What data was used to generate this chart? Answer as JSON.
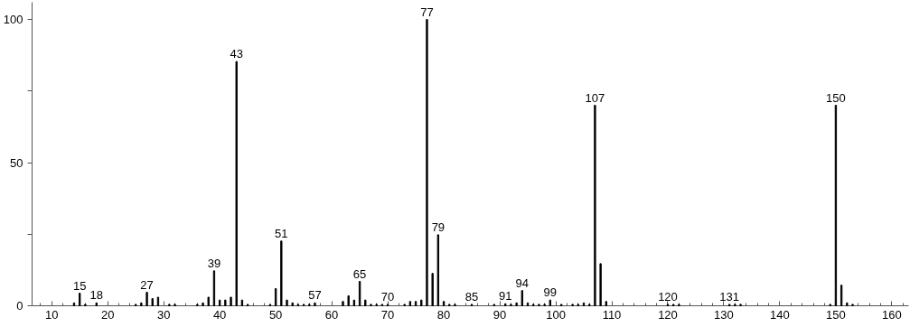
{
  "chart_data": {
    "type": "bar",
    "color": "#000000",
    "x": [
      14,
      15,
      16,
      18,
      25,
      26,
      27,
      28,
      29,
      31,
      32,
      36,
      37,
      38,
      39,
      40,
      41,
      42,
      43,
      44,
      45,
      49,
      50,
      51,
      52,
      53,
      54,
      55,
      56,
      57,
      62,
      63,
      64,
      65,
      66,
      67,
      68,
      69,
      70,
      73,
      74,
      75,
      76,
      77,
      78,
      79,
      80,
      81,
      82,
      85,
      89,
      91,
      92,
      93,
      94,
      95,
      96,
      97,
      98,
      99,
      101,
      103,
      104,
      105,
      106,
      107,
      108,
      109,
      120,
      121,
      122,
      131,
      132,
      133,
      149,
      150,
      151,
      152,
      153
    ],
    "values": [
      1,
      4.4,
      0.5,
      1,
      0.5,
      1,
      4.7,
      2.5,
      3,
      0.5,
      0.5,
      0.5,
      1,
      3,
      12.2,
      2,
      2,
      3,
      85.3,
      2,
      0.5,
      0.5,
      6,
      22.6,
      2,
      1,
      0.5,
      0.5,
      0.5,
      1,
      1.5,
      3.5,
      2,
      8.5,
      2,
      0.5,
      0.5,
      0.5,
      0.5,
      0.5,
      1.5,
      1.5,
      2,
      100,
      11.3,
      24.8,
      1.5,
      0.5,
      0.5,
      0.5,
      0.5,
      0.7,
      0.5,
      1,
      5.3,
      1,
      0.5,
      0.5,
      0.5,
      2,
      0.5,
      0.5,
      0.5,
      1,
      0.5,
      70,
      14.7,
      1.5,
      0.5,
      0.5,
      0.5,
      0.5,
      0.5,
      0.5,
      0.5,
      70,
      7.2,
      1,
      0.5
    ],
    "xlim": [
      6.5,
      163
    ],
    "ylim": [
      0,
      106
    ],
    "xticks": [
      10,
      20,
      30,
      40,
      50,
      60,
      70,
      80,
      90,
      100,
      110,
      120,
      130,
      140,
      150,
      160
    ],
    "yticks": [
      0,
      {
        "value": 25,
        "label": null
      },
      50,
      {
        "value": 75,
        "label": null
      },
      100
    ],
    "grid": false,
    "annotations": [
      {
        "text": "15",
        "x": 15,
        "y": 4.4
      },
      {
        "text": "18",
        "x": 18,
        "y": 1
      },
      {
        "text": "27",
        "x": 27,
        "y": 4.7
      },
      {
        "text": "39",
        "x": 39,
        "y": 12.2
      },
      {
        "text": "43",
        "x": 43,
        "y": 85.3
      },
      {
        "text": "51",
        "x": 51,
        "y": 22.6
      },
      {
        "text": "57",
        "x": 57,
        "y": 1
      },
      {
        "text": "65",
        "x": 65,
        "y": 8.5
      },
      {
        "text": "70",
        "x": 70,
        "y": 0.5
      },
      {
        "text": "77",
        "x": 77,
        "y": 100
      },
      {
        "text": "79",
        "x": 79,
        "y": 24.8
      },
      {
        "text": "85",
        "x": 85,
        "y": 0.5
      },
      {
        "text": "91",
        "x": 91,
        "y": 0.7
      },
      {
        "text": "94",
        "x": 94,
        "y": 5.3
      },
      {
        "text": "99",
        "x": 99,
        "y": 2
      },
      {
        "text": "107",
        "x": 107,
        "y": 70
      },
      {
        "text": "120",
        "x": 120,
        "y": 0.5
      },
      {
        "text": "131",
        "x": 131,
        "y": 0.5
      },
      {
        "text": "150",
        "x": 150,
        "y": 70
      }
    ]
  }
}
